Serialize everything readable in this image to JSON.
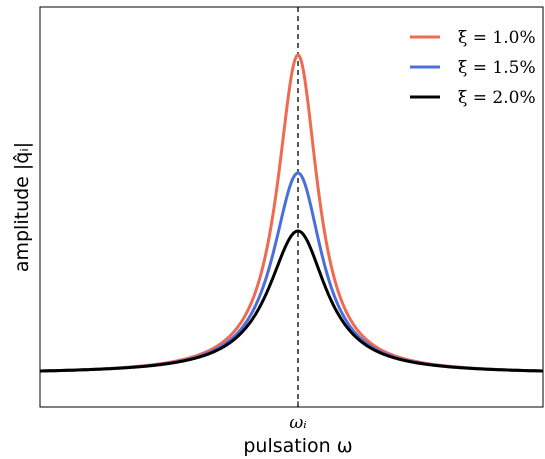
{
  "chart_data": {
    "type": "line",
    "xlabel": "pulsation ω",
    "ylabel": "amplitude |q̂ᵢ|",
    "x_tick_labels": [
      "ωᵢ"
    ],
    "grid": false,
    "legend_position": "top-right",
    "resonance_marker": "vertical dashed line at ωᵢ",
    "series": [
      {
        "name": "ξ = 1.0%",
        "color": "#f06a50",
        "xi": 0.01,
        "peak_y": 0.88
      },
      {
        "name": "ξ = 1.5%",
        "color": "#4a6fdc",
        "xi": 0.015,
        "peak_y": 0.585
      },
      {
        "name": "ξ = 2.0%",
        "color": "#000000",
        "xi": 0.02,
        "peak_y": 0.44
      }
    ],
    "ylim": [
      0,
      1
    ],
    "xlim_relative_to_omega_i": [
      -1,
      1
    ]
  }
}
